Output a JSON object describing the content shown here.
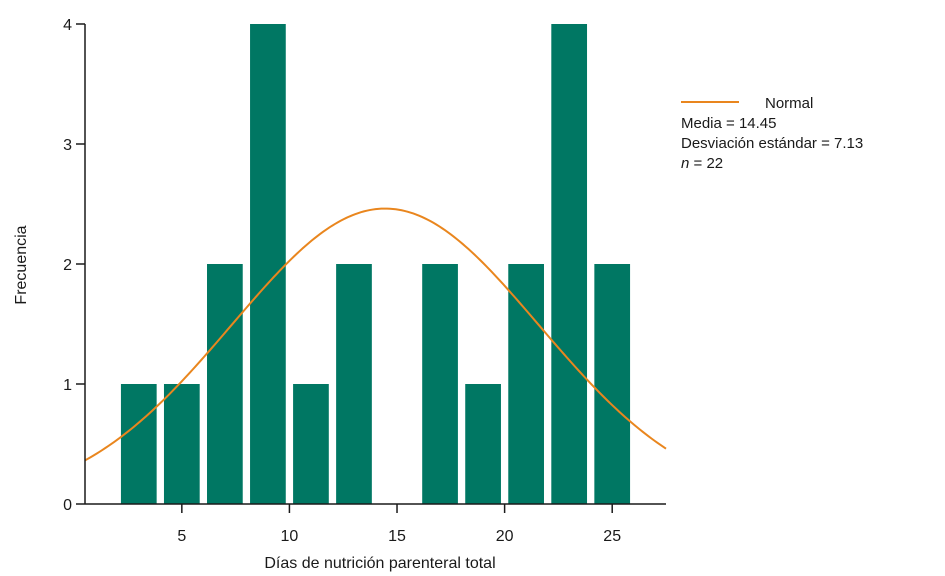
{
  "chart_data": {
    "type": "bar",
    "xlabel": "Días de nutrición parenteral total",
    "ylabel": "Frecuencia",
    "xlim": [
      0.5,
      27.5
    ],
    "ylim": [
      0,
      4
    ],
    "xticks": [
      5,
      10,
      15,
      20,
      25
    ],
    "yticks": [
      0,
      1,
      2,
      3,
      4
    ],
    "bin_width": 2,
    "bins": [
      {
        "x": 3,
        "value": 1
      },
      {
        "x": 5,
        "value": 1
      },
      {
        "x": 7,
        "value": 2
      },
      {
        "x": 9,
        "value": 4
      },
      {
        "x": 11,
        "value": 1
      },
      {
        "x": 13,
        "value": 2
      },
      {
        "x": 15,
        "value": 0
      },
      {
        "x": 17,
        "value": 2
      },
      {
        "x": 19,
        "value": 1
      },
      {
        "x": 21,
        "value": 2
      },
      {
        "x": 23,
        "value": 4
      },
      {
        "x": 25,
        "value": 2
      }
    ],
    "normal_curve": {
      "name": "Normal",
      "mean": 14.45,
      "sd": 7.13,
      "n": 22
    },
    "colors": {
      "bar": "#007763",
      "curve": "#e9861e",
      "axis": "#1a1a1a"
    }
  },
  "legend": {
    "series_label": "Normal",
    "mean_text": "Media = 14.45",
    "sd_text": "Desviación estándar = 7.13",
    "n_symbol": "n",
    "n_text": " = 22"
  }
}
